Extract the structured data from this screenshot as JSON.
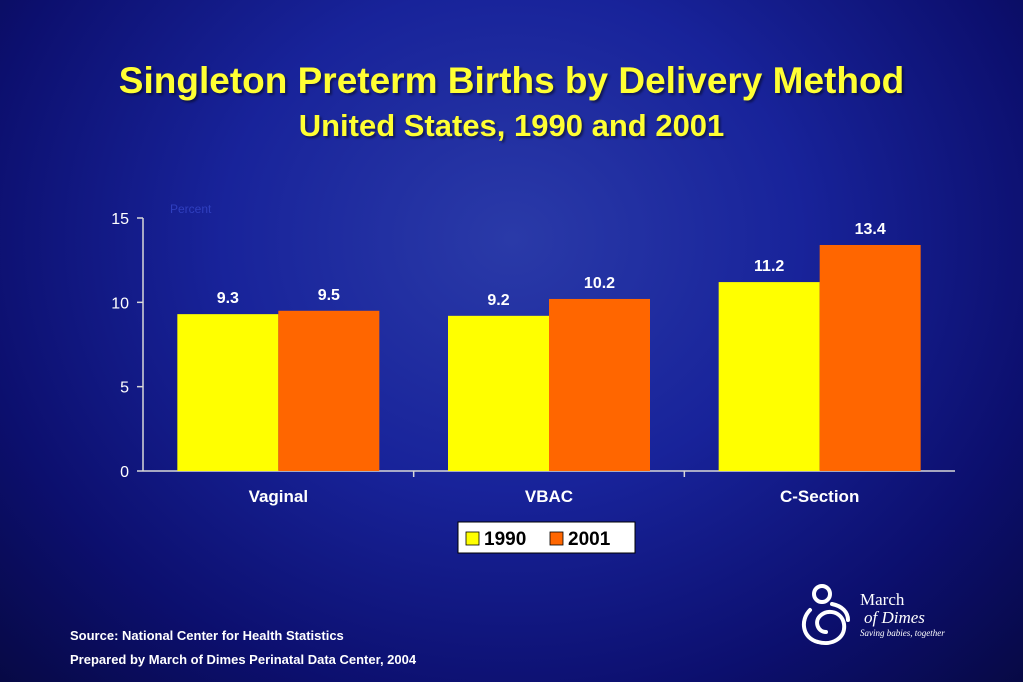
{
  "chart_data": {
    "type": "bar",
    "title": "Singleton Preterm Births by Delivery Method",
    "subtitle": "United States, 1990 and 2001",
    "unit_label": "Percent",
    "categories": [
      "Vaginal",
      "VBAC",
      "C-Section"
    ],
    "series": [
      {
        "name": "1990",
        "values": [
          9.3,
          9.2,
          11.2
        ],
        "color": "#ffff00"
      },
      {
        "name": "2001",
        "values": [
          9.5,
          10.2,
          13.4
        ],
        "color": "#ff6600"
      }
    ],
    "ylim": [
      0,
      15
    ],
    "yticks": [
      "0",
      "5",
      "10",
      "15"
    ],
    "legend_position": "bottom-center",
    "grid": false
  },
  "footer": {
    "source": "Source: National Center for Health Statistics",
    "prepared": "Prepared by March of Dimes Perinatal Data Center, 2004"
  },
  "logo": {
    "line1": "March",
    "line2": "of Dimes",
    "tagline": "Saving babies, together"
  }
}
